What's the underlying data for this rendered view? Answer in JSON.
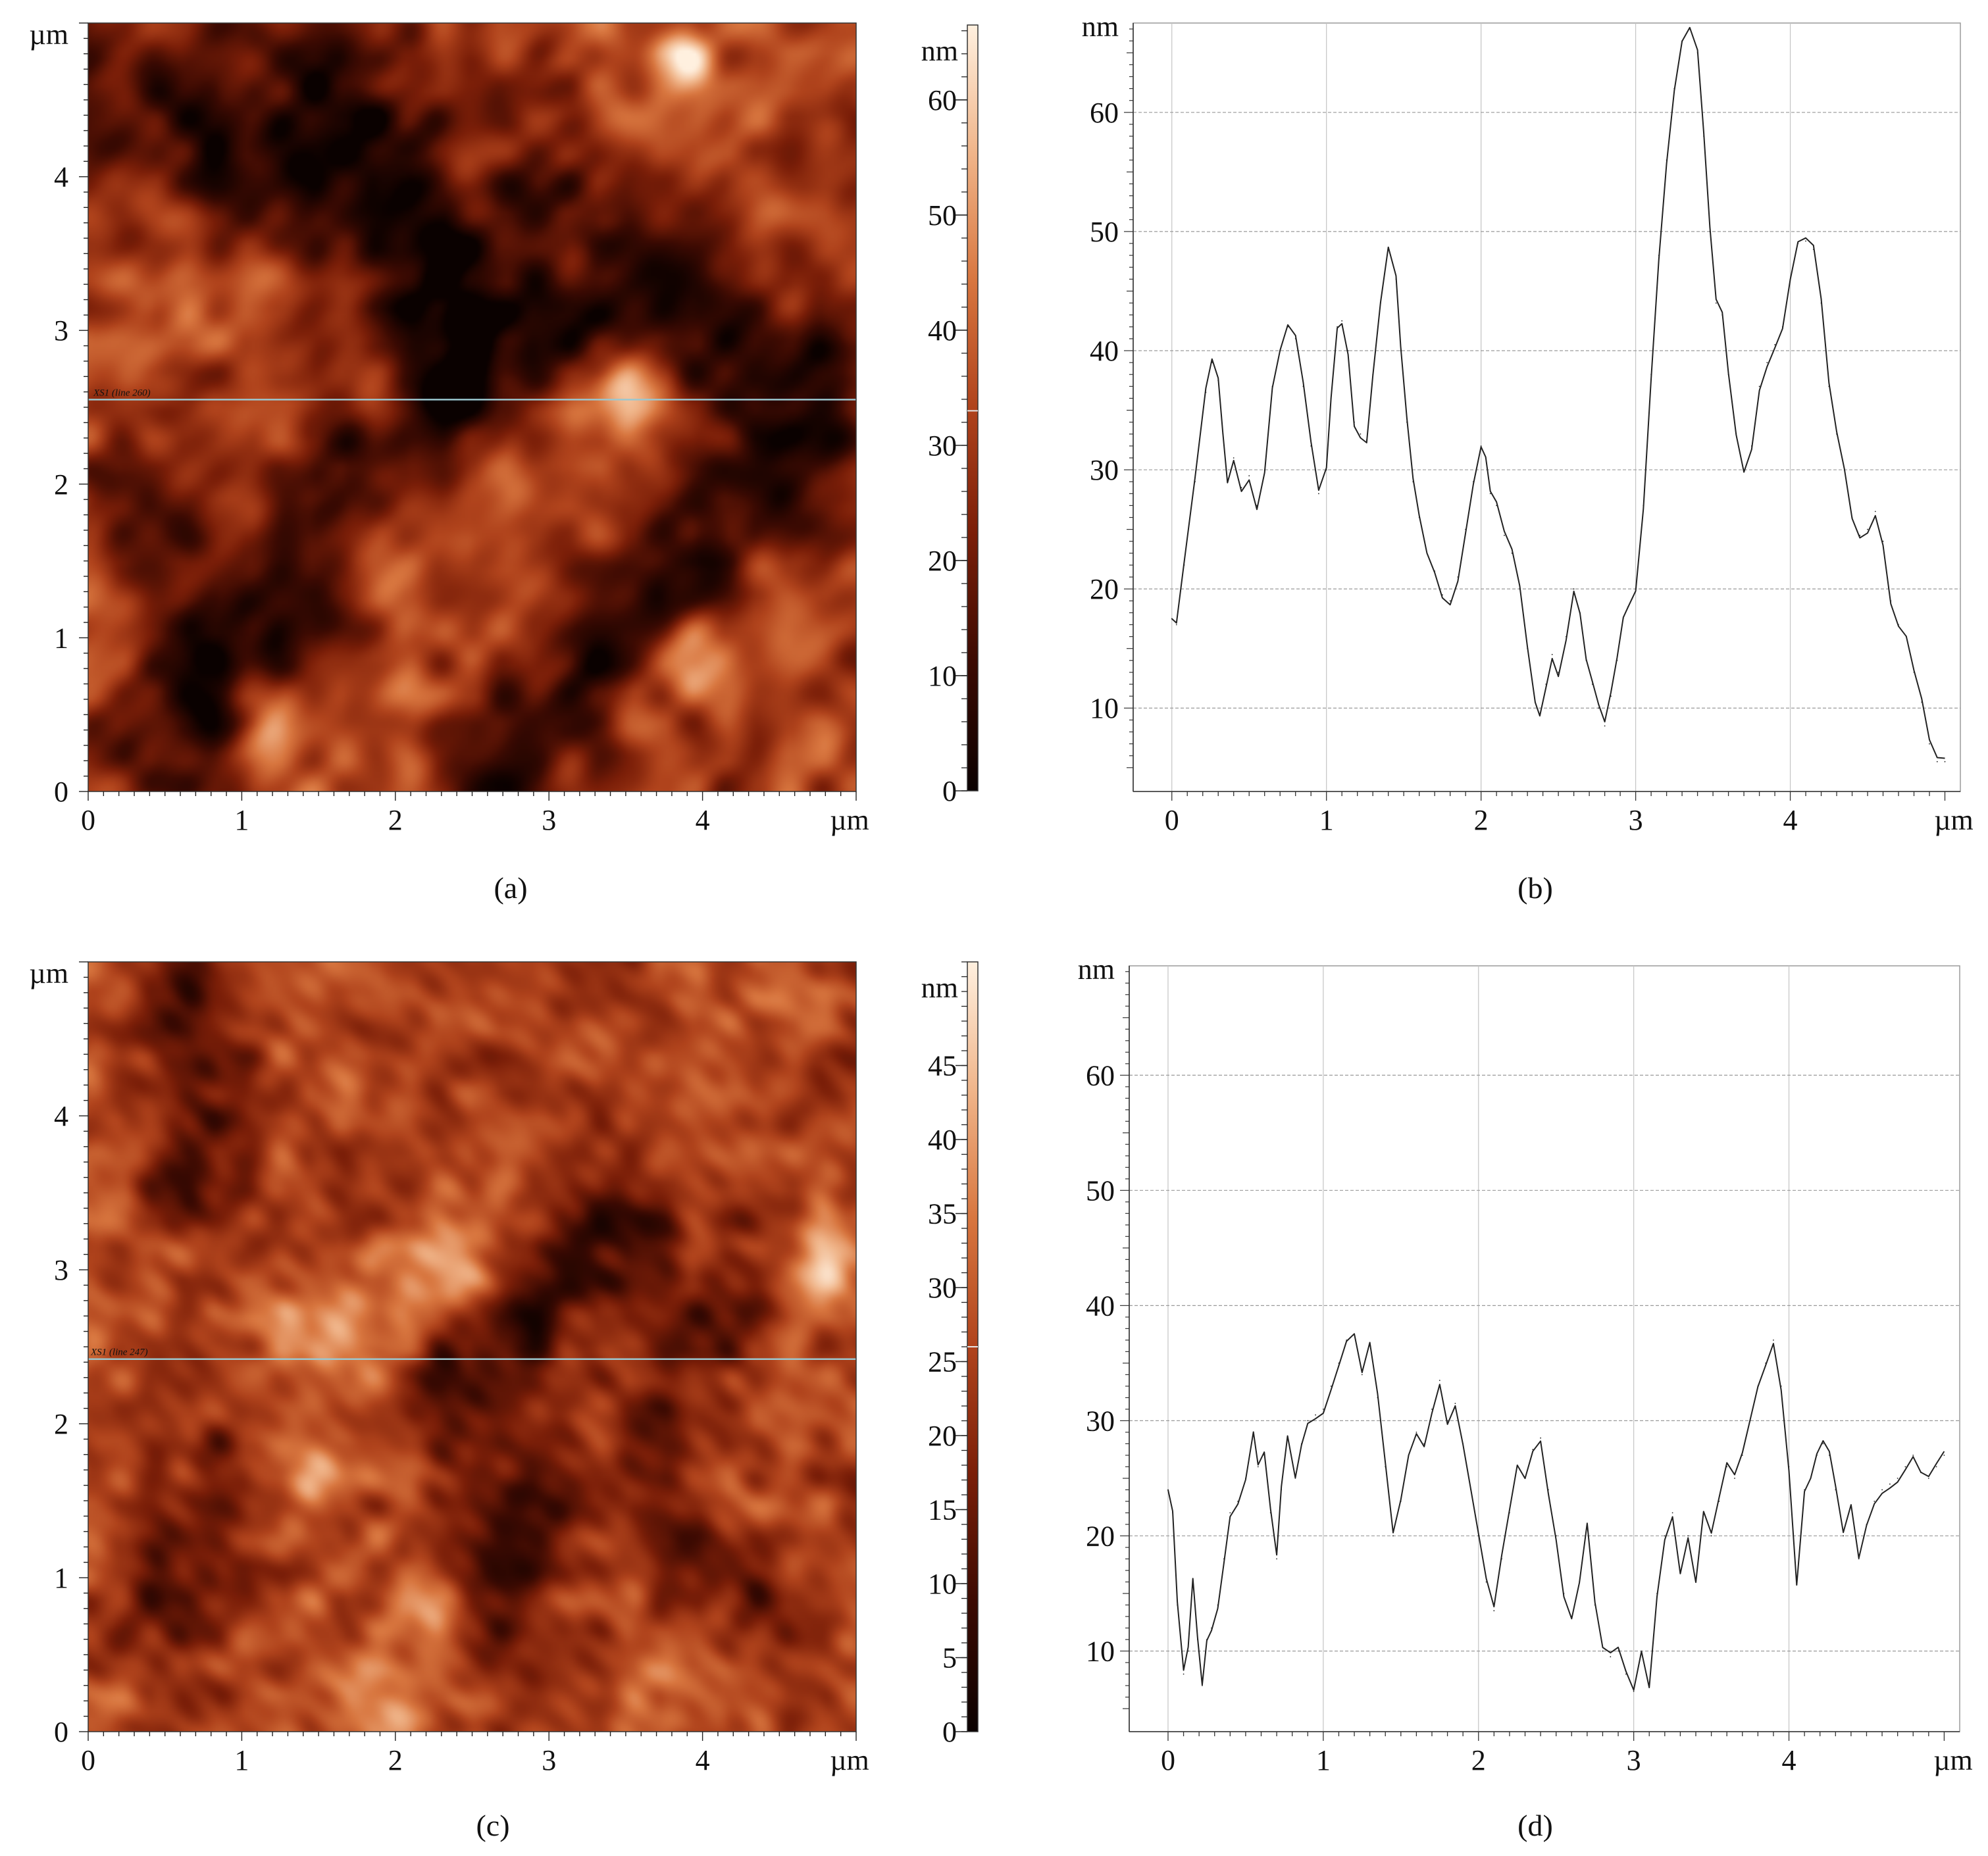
{
  "figure": {
    "panels": [
      {
        "label": "(a)",
        "kind": "afm-topography"
      },
      {
        "label": "(b)",
        "kind": "height-profile"
      },
      {
        "label": "(c)",
        "kind": "afm-topography"
      },
      {
        "label": "(d)",
        "kind": "height-profile"
      }
    ]
  },
  "chart_data": [
    {
      "id": "a",
      "type": "heatmap",
      "label": "(a)",
      "description_units": {
        "x": "µm",
        "y": "µm",
        "z": "nm"
      },
      "x_ticks": [
        "0",
        "1",
        "2",
        "3",
        "4",
        "µm"
      ],
      "y_ticks": [
        "0",
        "1",
        "2",
        "3",
        "4",
        "µm"
      ],
      "xlim": [
        0,
        5
      ],
      "ylim": [
        0,
        5
      ],
      "scan_line_label": "XS1 (line 260)",
      "scan_line_y": 2.55,
      "colorbar": {
        "unit": "nm",
        "ticks": [
          "0",
          "10",
          "20",
          "30",
          "40",
          "50",
          "60"
        ],
        "range": [
          0,
          66.5
        ],
        "marker_value": 33
      },
      "colormap": [
        "#0a0100",
        "#3b0a02",
        "#7a1e08",
        "#b0431c",
        "#d8763f",
        "#f0b58a",
        "#fff0df"
      ],
      "features": {
        "dark_bands": [
          {
            "x1": 1.3,
            "y1": 4.7,
            "x2": 4.8,
            "y2": 2.6,
            "width": 0.42,
            "strength": 0.9
          },
          {
            "x1": 0.1,
            "y1": 4.6,
            "x2": 2.9,
            "y2": 2.9,
            "width": 0.35,
            "strength": 0.75
          },
          {
            "x1": 0.55,
            "y1": 0.3,
            "x2": 2.3,
            "y2": 2.6,
            "width": 0.32,
            "strength": 0.85
          },
          {
            "x1": 2.7,
            "y1": 0.1,
            "x2": 4.3,
            "y2": 1.9,
            "width": 0.3,
            "strength": 0.95
          },
          {
            "x1": 0.3,
            "y1": 2.0,
            "x2": 0.7,
            "y2": 1.2,
            "width": 0.25,
            "strength": 0.7
          }
        ],
        "bright_spots": [
          {
            "x": 3.45,
            "y": 2.55,
            "r": 0.18,
            "strength": 1.0
          },
          {
            "x": 3.9,
            "y": 0.85,
            "r": 0.2,
            "strength": 0.9
          },
          {
            "x": 1.15,
            "y": 0.35,
            "r": 0.16,
            "strength": 0.8
          },
          {
            "x": 3.9,
            "y": 4.8,
            "r": 0.12,
            "strength": 0.8
          },
          {
            "x": 2.4,
            "y": 4.1,
            "r": 0.15,
            "strength": 0.6
          },
          {
            "x": 1.9,
            "y": 1.5,
            "r": 0.22,
            "strength": 0.55
          },
          {
            "x": 3.2,
            "y": 3.5,
            "r": 0.2,
            "strength": 0.55
          },
          {
            "x": 1.1,
            "y": 4.6,
            "r": 0.2,
            "strength": 0.5
          }
        ],
        "texture_scale": 0.09,
        "base": 0.5
      }
    },
    {
      "id": "b",
      "type": "line",
      "label": "(b)",
      "ylabel": "nm",
      "xlabel": "µm",
      "x_ticks": [
        "0",
        "1",
        "2",
        "3",
        "4",
        "µm"
      ],
      "y_ticks": [
        "10",
        "20",
        "30",
        "40",
        "50",
        "60"
      ],
      "xlim": [
        -0.25,
        5.1
      ],
      "ylim": [
        3,
        67.5
      ],
      "x": [
        0.0,
        0.03,
        0.08,
        0.15,
        0.22,
        0.26,
        0.3,
        0.33,
        0.36,
        0.4,
        0.45,
        0.5,
        0.55,
        0.6,
        0.65,
        0.7,
        0.75,
        0.8,
        0.85,
        0.9,
        0.95,
        1.0,
        1.03,
        1.07,
        1.1,
        1.14,
        1.18,
        1.22,
        1.26,
        1.3,
        1.35,
        1.4,
        1.45,
        1.48,
        1.52,
        1.56,
        1.6,
        1.65,
        1.7,
        1.75,
        1.8,
        1.85,
        1.9,
        1.95,
        2.0,
        2.03,
        2.06,
        2.1,
        2.15,
        2.2,
        2.25,
        2.3,
        2.35,
        2.38,
        2.42,
        2.46,
        2.5,
        2.55,
        2.6,
        2.64,
        2.68,
        2.72,
        2.76,
        2.8,
        2.84,
        2.88,
        2.92,
        2.95,
        3.0,
        3.05,
        3.1,
        3.15,
        3.2,
        3.25,
        3.3,
        3.35,
        3.4,
        3.44,
        3.48,
        3.52,
        3.56,
        3.6,
        3.65,
        3.7,
        3.75,
        3.8,
        3.85,
        3.9,
        3.95,
        4.0,
        4.05,
        4.1,
        4.15,
        4.2,
        4.25,
        4.3,
        4.35,
        4.4,
        4.45,
        4.5,
        4.55,
        4.6,
        4.65,
        4.7,
        4.75,
        4.8,
        4.85,
        4.9,
        4.95,
        5.0
      ],
      "values": [
        17.5,
        17.0,
        22.0,
        29.0,
        36.5,
        39.0,
        37.5,
        33.0,
        29.0,
        31.0,
        28.5,
        29.5,
        27.0,
        30.0,
        37.0,
        40.0,
        42.0,
        41.0,
        37.0,
        32.0,
        28.0,
        30.0,
        36.0,
        42.0,
        42.5,
        40.0,
        34.0,
        33.0,
        32.5,
        38.0,
        44.0,
        48.5,
        46.0,
        40.0,
        34.0,
        29.0,
        26.0,
        23.0,
        21.5,
        19.5,
        19.0,
        21.0,
        25.0,
        29.0,
        32.0,
        31.0,
        28.0,
        27.0,
        24.5,
        23.0,
        20.0,
        15.0,
        10.5,
        9.5,
        12.0,
        14.5,
        13.0,
        16.0,
        20.0,
        18.0,
        14.0,
        12.0,
        10.0,
        8.5,
        11.0,
        14.0,
        17.5,
        18.5,
        20.0,
        27.0,
        38.0,
        48.0,
        56.0,
        62.0,
        66.0,
        67.0,
        65.0,
        58.0,
        50.0,
        44.0,
        43.0,
        38.0,
        33.0,
        30.0,
        32.0,
        37.0,
        39.0,
        40.5,
        42.0,
        46.0,
        49.0,
        49.2,
        48.5,
        44.0,
        37.0,
        33.0,
        30.0,
        26.0,
        24.5,
        25.0,
        26.5,
        24.0,
        19.0,
        17.0,
        16.0,
        13.0,
        10.5,
        7.0,
        5.5,
        5.5
      ]
    },
    {
      "id": "c",
      "type": "heatmap",
      "label": "(c)",
      "description_units": {
        "x": "µm",
        "y": "µm",
        "z": "nm"
      },
      "x_ticks": [
        "0",
        "1",
        "2",
        "3",
        "4",
        "µm"
      ],
      "y_ticks": [
        "0",
        "1",
        "2",
        "3",
        "4",
        "µm"
      ],
      "xlim": [
        0,
        5
      ],
      "ylim": [
        0,
        5
      ],
      "scan_line_label": "XS1 (line 247)",
      "scan_line_y": 2.42,
      "colorbar": {
        "unit": "nm",
        "ticks": [
          "0",
          "5",
          "10",
          "15",
          "20",
          "25",
          "30",
          "35",
          "40",
          "45"
        ],
        "range": [
          0,
          52
        ],
        "marker_value": 26
      },
      "colormap": [
        "#0a0100",
        "#3b0a02",
        "#7a1e08",
        "#b0431c",
        "#d8763f",
        "#f0b58a",
        "#fff0df"
      ],
      "features": {
        "dark_bands": [
          {
            "x1": 0.7,
            "y1": 4.9,
            "x2": 0.7,
            "y2": 3.6,
            "width": 0.25,
            "strength": 0.7
          },
          {
            "x1": 3.4,
            "y1": 3.3,
            "x2": 2.5,
            "y2": 2.3,
            "width": 0.3,
            "strength": 0.8
          },
          {
            "x1": 2.9,
            "y1": 1.5,
            "x2": 2.6,
            "y2": 0.7,
            "width": 0.25,
            "strength": 0.8
          },
          {
            "x1": 0.9,
            "y1": 1.6,
            "x2": 0.5,
            "y2": 0.9,
            "width": 0.25,
            "strength": 0.6
          },
          {
            "x1": 4.2,
            "y1": 2.9,
            "x2": 3.8,
            "y2": 2.1,
            "width": 0.25,
            "strength": 0.6
          },
          {
            "x1": 3.8,
            "y1": 1.4,
            "x2": 4.4,
            "y2": 0.8,
            "width": 0.2,
            "strength": 0.55
          }
        ],
        "bright_spots": [
          {
            "x": 1.6,
            "y": 2.6,
            "r": 0.3,
            "strength": 0.75
          },
          {
            "x": 2.4,
            "y": 3.0,
            "r": 0.25,
            "strength": 0.7
          },
          {
            "x": 4.8,
            "y": 3.0,
            "r": 0.2,
            "strength": 0.65
          },
          {
            "x": 1.9,
            "y": 0.1,
            "r": 0.2,
            "strength": 0.7
          },
          {
            "x": 2.2,
            "y": 0.8,
            "r": 0.2,
            "strength": 0.6
          },
          {
            "x": 1.4,
            "y": 1.6,
            "r": 0.22,
            "strength": 0.6
          },
          {
            "x": 4.0,
            "y": 0.3,
            "r": 0.2,
            "strength": 0.5
          }
        ],
        "texture_scale": 0.05,
        "base": 0.5
      }
    },
    {
      "id": "d",
      "type": "line",
      "label": "(d)",
      "ylabel": "nm",
      "xlabel": "µm",
      "x_ticks": [
        "0",
        "1",
        "2",
        "3",
        "4",
        "µm"
      ],
      "y_ticks": [
        "10",
        "20",
        "30",
        "40",
        "50",
        "60"
      ],
      "xlim": [
        -0.25,
        5.1
      ],
      "ylim": [
        3,
        69.5
      ],
      "x": [
        0.0,
        0.03,
        0.06,
        0.1,
        0.13,
        0.16,
        0.19,
        0.22,
        0.25,
        0.28,
        0.32,
        0.36,
        0.4,
        0.45,
        0.5,
        0.55,
        0.58,
        0.62,
        0.66,
        0.7,
        0.73,
        0.77,
        0.82,
        0.86,
        0.9,
        0.95,
        1.0,
        1.05,
        1.1,
        1.15,
        1.2,
        1.25,
        1.3,
        1.35,
        1.4,
        1.45,
        1.5,
        1.55,
        1.6,
        1.65,
        1.7,
        1.75,
        1.8,
        1.85,
        1.9,
        1.95,
        2.0,
        2.05,
        2.1,
        2.15,
        2.2,
        2.25,
        2.3,
        2.35,
        2.4,
        2.45,
        2.5,
        2.55,
        2.6,
        2.65,
        2.7,
        2.75,
        2.8,
        2.85,
        2.9,
        2.95,
        3.0,
        3.05,
        3.1,
        3.15,
        3.2,
        3.25,
        3.3,
        3.35,
        3.4,
        3.45,
        3.5,
        3.55,
        3.6,
        3.65,
        3.7,
        3.75,
        3.8,
        3.85,
        3.9,
        3.95,
        4.0,
        4.05,
        4.1,
        4.14,
        4.18,
        4.22,
        4.26,
        4.3,
        4.35,
        4.4,
        4.45,
        4.5,
        4.55,
        4.6,
        4.65,
        4.7,
        4.75,
        4.8,
        4.85,
        4.9,
        4.95,
        5.0
      ],
      "values": [
        24.0,
        22.0,
        14.0,
        8.0,
        10.0,
        16.0,
        11.0,
        7.0,
        11.0,
        12.0,
        14.0,
        18.0,
        22.0,
        23.0,
        25.0,
        29.0,
        26.0,
        27.0,
        22.0,
        18.0,
        24.0,
        28.5,
        25.0,
        28.0,
        30.0,
        30.5,
        31.0,
        33.0,
        35.0,
        37.0,
        37.5,
        34.0,
        36.5,
        32.0,
        26.0,
        20.0,
        23.0,
        27.0,
        29.0,
        28.0,
        31.0,
        33.5,
        30.0,
        31.5,
        28.0,
        24.0,
        20.0,
        16.0,
        13.5,
        18.0,
        22.0,
        26.0,
        25.0,
        27.5,
        28.5,
        24.0,
        20.0,
        15.0,
        13.0,
        16.0,
        21.0,
        14.0,
        10.0,
        9.5,
        10.0,
        8.0,
        6.5,
        10.0,
        7.0,
        15.0,
        20.0,
        22.0,
        17.0,
        20.0,
        16.0,
        22.0,
        20.0,
        23.0,
        26.0,
        25.0,
        27.0,
        30.0,
        33.0,
        35.0,
        37.0,
        33.0,
        26.0,
        16.0,
        24.0,
        25.0,
        27.0,
        28.0,
        27.0,
        24.0,
        20.0,
        22.5,
        18.0,
        21.0,
        23.0,
        24.0,
        24.5,
        25.0,
        26.0,
        27.0,
        25.5,
        25.0,
        26.0,
        27.0
      ]
    }
  ]
}
